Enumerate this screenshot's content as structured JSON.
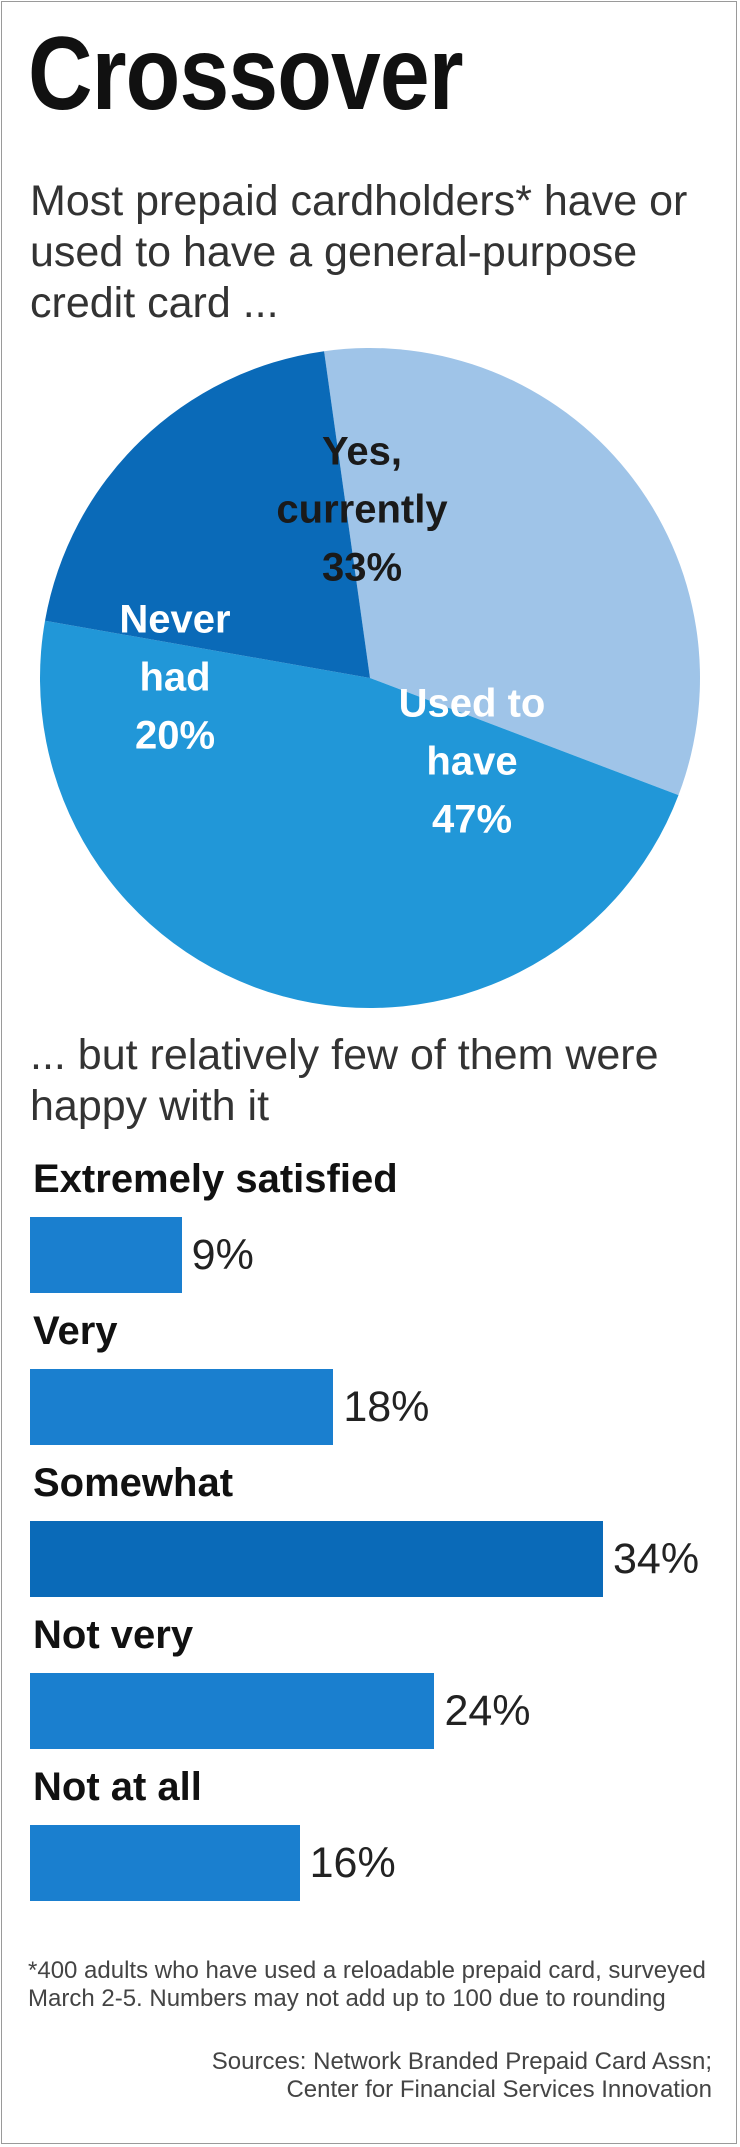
{
  "chart_data": [
    {
      "type": "pie",
      "title": "Crossover",
      "subtitle": "Most prepaid cardholders* have or used to have a general-purpose credit card ...",
      "slices": [
        {
          "label_lines": [
            "Yes,",
            "currently"
          ],
          "value": 33,
          "value_label": "33%",
          "color": "#9fc4e8",
          "text_color": "#1a1a1a"
        },
        {
          "label_lines": [
            "Used to",
            "have"
          ],
          "value": 47,
          "value_label": "47%",
          "color": "#2197d8",
          "text_color": "#ffffff"
        },
        {
          "label_lines": [
            "Never",
            "had"
          ],
          "value": 20,
          "value_label": "20%",
          "color": "#0a6ab8",
          "text_color": "#ffffff"
        }
      ]
    },
    {
      "type": "bar",
      "subtitle": "... but relatively few of them were happy with it",
      "categories": [
        "Extremely satisfied",
        "Very",
        "Somewhat",
        "Not very",
        "Not at all"
      ],
      "values": [
        9,
        18,
        34,
        24,
        16
      ],
      "value_labels": [
        "9%",
        "18%",
        "34%",
        "24%",
        "16%"
      ],
      "xlim": [
        0,
        34
      ],
      "colors": {
        "bar": "#1a7fcf",
        "bar_highlight": "#0a6ab8"
      }
    }
  ],
  "footnote": "*400 adults who have used a reloadable prepaid card, surveyed March 2-5. Numbers may not add up to 100 due to rounding",
  "sources": {
    "line1": "Sources: Network Branded Prepaid Card Assn;",
    "line2": "Center for Financial Services Innovation"
  }
}
